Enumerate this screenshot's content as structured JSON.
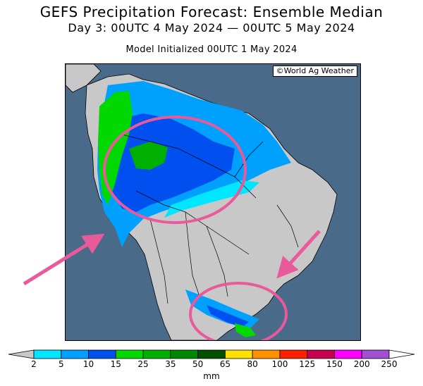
{
  "header": {
    "title": "GEFS Precipitation Forecast: Ensemble Median",
    "subtitle": "Day 3: 00UTC 4 May 2024 — 00UTC 5 May 2024",
    "init": "Model Initialized 00UTC 1 May 2024"
  },
  "map": {
    "credit": "©World Ag Weather",
    "region": "South America",
    "annotations": [
      "pink-ellipse-north",
      "pink-ellipse-south",
      "pink-arrow-left",
      "pink-arrow-right"
    ]
  },
  "colorbar": {
    "units": "mm",
    "ticks": [
      "2",
      "5",
      "10",
      "15",
      "25",
      "35",
      "50",
      "65",
      "80",
      "100",
      "125",
      "150",
      "200",
      "250"
    ],
    "colors": [
      "#00e6ff",
      "#00a0ff",
      "#0050f0",
      "#00d800",
      "#00b000",
      "#008800",
      "#005000",
      "#ffe000",
      "#ff9000",
      "#ff2000",
      "#c80050",
      "#ff00ff",
      "#a050d0"
    ]
  },
  "colors": {
    "ocean": "#4a6a8a",
    "land": "#c8c8c8",
    "annotation": "#e85a9a"
  }
}
